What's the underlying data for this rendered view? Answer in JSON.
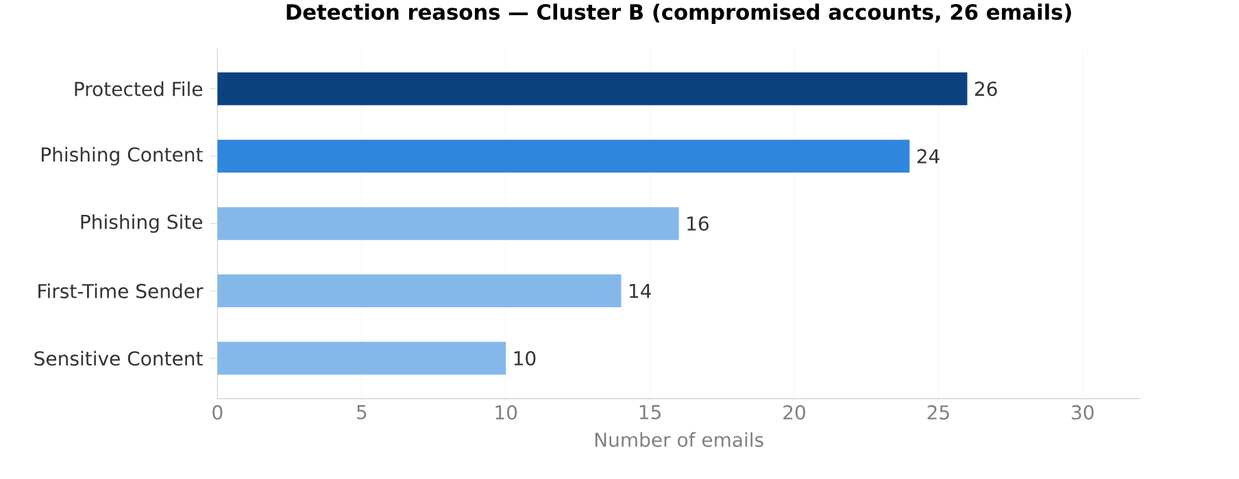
{
  "chart_data": {
    "type": "bar",
    "orientation": "horizontal",
    "title": "Detection reasons — Cluster B (compromised accounts, 26 emails)",
    "xlabel": "Number of emails",
    "categories": [
      "Protected File",
      "Phishing Content",
      "Phishing Site",
      "First-Time Sender",
      "Sensitive Content"
    ],
    "values": [
      26,
      24,
      16,
      14,
      10
    ],
    "colors": [
      "#0c4280",
      "#2f86dd",
      "#85b8ea",
      "#85b8ea",
      "#85b8ea"
    ],
    "xlim": [
      0,
      32
    ],
    "xticks": [
      0,
      5,
      10,
      15,
      20,
      25,
      30
    ],
    "grid": "x",
    "data_labels": true
  }
}
